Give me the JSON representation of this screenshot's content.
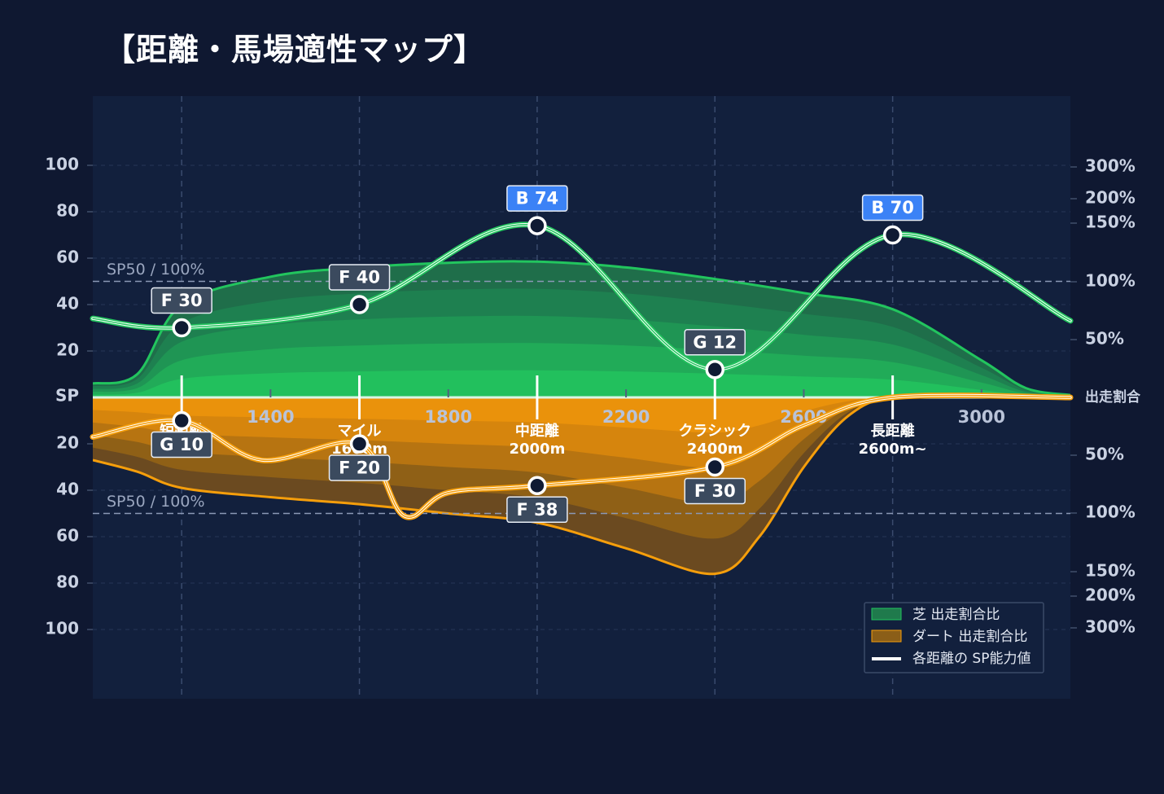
{
  "title": "【距離・馬場適性マップ】",
  "colors": {
    "background": "#0f1831",
    "plot": "#12203d",
    "turf": "#22c55e",
    "dirt": "#f59e0b",
    "line": "#ffffff",
    "badge_blue": "#3b82f6",
    "badge_gray": "#3b4a5e"
  },
  "chart_data": {
    "type": "area",
    "y_label_center": "SP",
    "y_ticks_top": [
      "100",
      "80",
      "60",
      "40",
      "20"
    ],
    "y_ticks_bottom": [
      "20",
      "40",
      "60",
      "80",
      "100"
    ],
    "right_ticks_top": [
      "300%",
      "200%",
      "150%",
      "100%",
      "50%"
    ],
    "right_ticks_bottom": [
      "50%",
      "100%",
      "150%",
      "200%",
      "300%"
    ],
    "right_center_label": "出走割合",
    "x_ticks": [
      "1400",
      "1800",
      "2200",
      "2600",
      "3000"
    ],
    "x_range": [
      1000,
      3200
    ],
    "y_range": [
      -100,
      100
    ],
    "reference_line": {
      "value": 50,
      "label": "SP50 / 100%"
    },
    "categories": [
      {
        "name": "短距離",
        "dist": "",
        "x": 1200
      },
      {
        "name": "マイル",
        "dist": "1600m",
        "x": 1600
      },
      {
        "name": "中距離",
        "dist": "2000m",
        "x": 2000
      },
      {
        "name": "クラシック",
        "dist": "2400m",
        "x": 2400
      },
      {
        "name": "長距離",
        "dist": "2600m~",
        "x": 2800
      }
    ],
    "series": [
      {
        "name": "芝 出走割合比",
        "surface": "turf",
        "share_profile": [
          [
            1000,
            6
          ],
          [
            1100,
            10
          ],
          [
            1200,
            40
          ],
          [
            1400,
            52
          ],
          [
            1600,
            56
          ],
          [
            1800,
            58
          ],
          [
            2000,
            58.5
          ],
          [
            2200,
            56
          ],
          [
            2400,
            51
          ],
          [
            2600,
            45
          ],
          [
            2800,
            38
          ],
          [
            3000,
            16
          ],
          [
            3100,
            4
          ],
          [
            3200,
            1
          ]
        ],
        "sp_points": [
          {
            "x": 1200,
            "value": 30,
            "grade": "F"
          },
          {
            "x": 1600,
            "value": 40,
            "grade": "F"
          },
          {
            "x": 2000,
            "value": 74,
            "grade": "B"
          },
          {
            "x": 2400,
            "value": 12,
            "grade": "G"
          },
          {
            "x": 2800,
            "value": 70,
            "grade": "B"
          }
        ]
      },
      {
        "name": "ダート 出走割合比",
        "surface": "dirt",
        "share_profile": [
          [
            1000,
            -27
          ],
          [
            1100,
            -32
          ],
          [
            1200,
            -39
          ],
          [
            1400,
            -43
          ],
          [
            1600,
            -46
          ],
          [
            1800,
            -50
          ],
          [
            2000,
            -54
          ],
          [
            2200,
            -65
          ],
          [
            2400,
            -76
          ],
          [
            2500,
            -60
          ],
          [
            2600,
            -30
          ],
          [
            2700,
            -8
          ],
          [
            2800,
            0
          ],
          [
            3000,
            0
          ],
          [
            3200,
            0
          ]
        ],
        "sp_points": [
          {
            "x": 1200,
            "value": 10,
            "grade": "G"
          },
          {
            "x": 1600,
            "value": 20,
            "grade": "F"
          },
          {
            "x": 2000,
            "value": 38,
            "grade": "F"
          },
          {
            "x": 2400,
            "value": 30,
            "grade": "F"
          }
        ]
      }
    ],
    "line_series_name": "各距離の SP能力値",
    "legend_position": "bottom-right",
    "grid": true
  }
}
